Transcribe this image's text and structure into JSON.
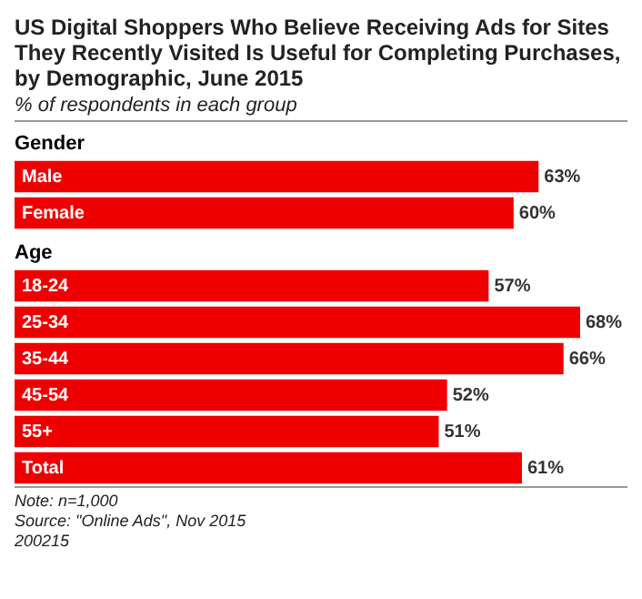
{
  "chart_data": {
    "type": "bar",
    "orientation": "horizontal",
    "title": "US Digital Shoppers Who Believe Receiving Ads for Sites They Recently Visited Is Useful for Completing Purchases, by Demographic, June 2015",
    "subtitle": "% of respondents in each group",
    "categories": [
      "Gender",
      "Male",
      "Female",
      "Age",
      "18-24",
      "25-34",
      "35-44",
      "45-54",
      "55+",
      "Total"
    ],
    "values": [
      null,
      63,
      60,
      null,
      57,
      68,
      66,
      52,
      51,
      61
    ],
    "value_labels": [
      null,
      "63%",
      "60%",
      null,
      "57%",
      "68%",
      "66%",
      "52%",
      "51%",
      "61%"
    ],
    "color": "#ee0000",
    "xlim": [
      0,
      68
    ],
    "legend": false,
    "annotations": [
      "Note: n=1,000",
      "Source: \"Online Ads\", Nov 2015",
      "200215"
    ]
  }
}
